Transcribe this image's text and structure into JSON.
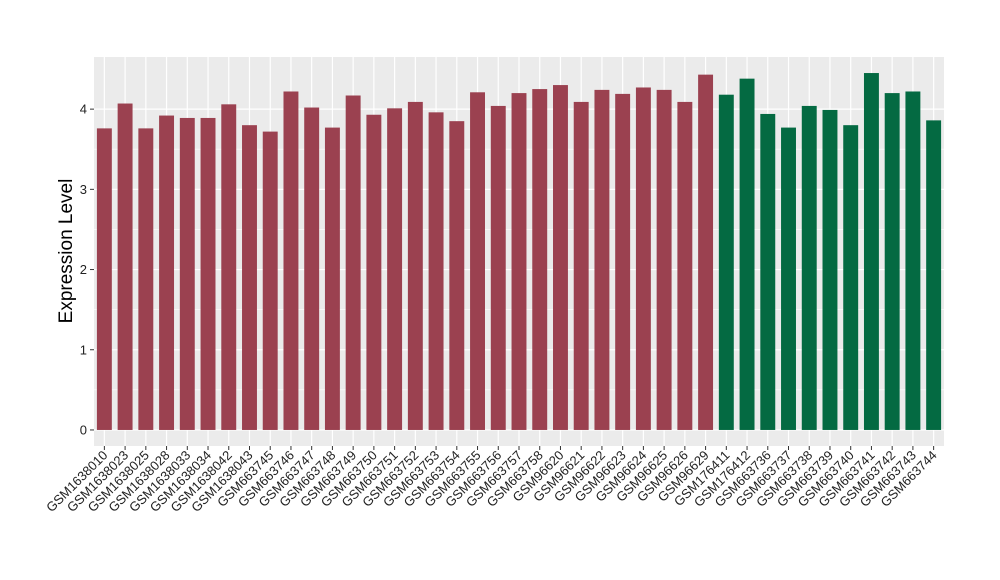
{
  "chart_data": {
    "type": "bar",
    "ylabel": "Expression Level",
    "xlabel": "",
    "ylim": [
      -0.2,
      4.65
    ],
    "yticks": [
      0,
      1,
      2,
      3,
      4
    ],
    "grid": true,
    "background": "#EBEBEB",
    "gridline_color": "#FFFFFF",
    "colors": {
      "group_1": "#9B4150",
      "group_2": "#046A42"
    },
    "categories": [
      "GSM1638010",
      "GSM1638023",
      "GSM1638025",
      "GSM1638028",
      "GSM1638033",
      "GSM1638034",
      "GSM1638042",
      "GSM1638043",
      "GSM663745",
      "GSM663746",
      "GSM663747",
      "GSM663748",
      "GSM663749",
      "GSM663750",
      "GSM663751",
      "GSM663752",
      "GSM663753",
      "GSM663754",
      "GSM663755",
      "GSM663756",
      "GSM663757",
      "GSM663758",
      "GSM96620",
      "GSM96621",
      "GSM96622",
      "GSM96623",
      "GSM96624",
      "GSM96625",
      "GSM96626",
      "GSM96629",
      "GSM176411",
      "GSM176412",
      "GSM663736",
      "GSM663737",
      "GSM663738",
      "GSM663739",
      "GSM663740",
      "GSM663741",
      "GSM663742",
      "GSM663743",
      "GSM663744"
    ],
    "values": [
      3.76,
      4.07,
      3.76,
      3.92,
      3.89,
      3.89,
      4.06,
      3.8,
      3.72,
      4.22,
      4.02,
      3.77,
      4.17,
      3.93,
      4.01,
      4.09,
      3.96,
      3.85,
      4.21,
      4.04,
      4.2,
      4.25,
      4.3,
      4.09,
      4.24,
      4.19,
      4.27,
      4.24,
      4.09,
      4.43,
      4.18,
      4.38,
      3.94,
      3.77,
      4.04,
      3.99,
      3.8,
      4.45,
      4.2,
      4.22,
      3.86
    ],
    "groups": [
      "group_1",
      "group_1",
      "group_1",
      "group_1",
      "group_1",
      "group_1",
      "group_1",
      "group_1",
      "group_1",
      "group_1",
      "group_1",
      "group_1",
      "group_1",
      "group_1",
      "group_1",
      "group_1",
      "group_1",
      "group_1",
      "group_1",
      "group_1",
      "group_1",
      "group_1",
      "group_1",
      "group_1",
      "group_1",
      "group_1",
      "group_1",
      "group_1",
      "group_1",
      "group_1",
      "group_2",
      "group_2",
      "group_2",
      "group_2",
      "group_2",
      "group_2",
      "group_2",
      "group_2",
      "group_2",
      "group_2",
      "group_2"
    ]
  }
}
